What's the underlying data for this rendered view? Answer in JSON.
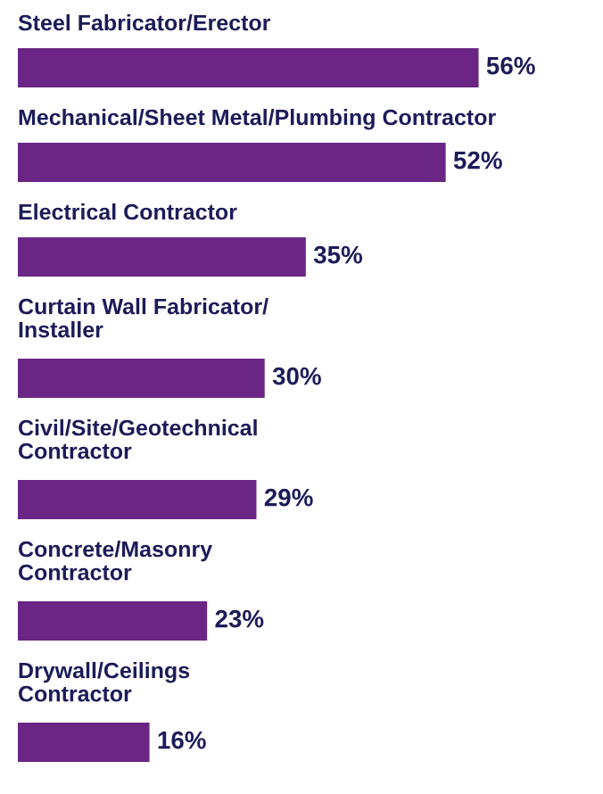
{
  "chart_data": {
    "type": "bar",
    "orientation": "horizontal",
    "categories": [
      "Steel Fabricator/Erector",
      "Mechanical/Sheet Metal/Plumbing Contractor",
      "Electrical Contractor",
      "Curtain Wall Fabricator/\nInstaller",
      "Civil/Site/Geotechnical\nContractor",
      "Concrete/Masonry\nContractor",
      "Drywall/Ceilings\nContractor"
    ],
    "values": [
      56,
      52,
      35,
      30,
      29,
      23,
      16
    ],
    "value_labels": [
      "56%",
      "52%",
      "35%",
      "30%",
      "29%",
      "23%",
      "16%"
    ],
    "color": "#6a2585"
  }
}
